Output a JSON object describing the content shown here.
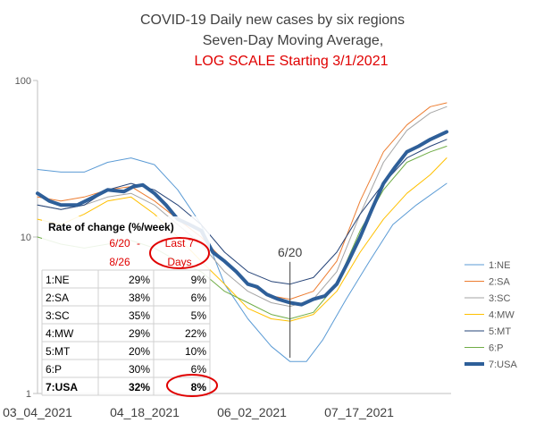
{
  "chart_data": {
    "type": "line",
    "title_lines": [
      {
        "text": "COVID-19 Daily new cases by six regions",
        "color": "#404040"
      },
      {
        "text": "Seven-Day Moving Average,",
        "color": "#404040"
      },
      {
        "text": "LOG SCALE Starting 3/1/2021",
        "color": "#e00000"
      }
    ],
    "y_scale": "log",
    "ylim": [
      1,
      100
    ],
    "yticks": [
      "100",
      "10",
      "1"
    ],
    "xticks": [
      "03_04_2021",
      "04_18_2021",
      "06_02_2021",
      "07_17_2021"
    ],
    "x_dates": [
      "2021-03-04",
      "2021-04-18",
      "2021-06-02",
      "2021-07-17"
    ],
    "xlim": [
      "2021-03-04",
      "2021-08-26"
    ],
    "grid": false,
    "legend_position": "right",
    "series": [
      {
        "name": "1:NE",
        "color": "#5b9bd5",
        "width": 1,
        "points": [
          [
            "2021-03-04",
            27
          ],
          [
            "2021-03-14",
            26
          ],
          [
            "2021-03-24",
            26
          ],
          [
            "2021-04-03",
            30
          ],
          [
            "2021-04-13",
            32
          ],
          [
            "2021-04-23",
            29
          ],
          [
            "2021-05-03",
            20
          ],
          [
            "2021-05-13",
            12
          ],
          [
            "2021-05-23",
            5
          ],
          [
            "2021-06-02",
            3
          ],
          [
            "2021-06-12",
            2
          ],
          [
            "2021-06-20",
            1.6
          ],
          [
            "2021-06-27",
            1.6
          ],
          [
            "2021-07-04",
            2.2
          ],
          [
            "2021-07-14",
            4
          ],
          [
            "2021-07-24",
            7
          ],
          [
            "2021-08-03",
            12
          ],
          [
            "2021-08-13",
            16
          ],
          [
            "2021-08-26",
            22
          ]
        ]
      },
      {
        "name": "2:SA",
        "color": "#ed7d31",
        "width": 1,
        "points": [
          [
            "2021-03-04",
            18
          ],
          [
            "2021-03-14",
            17
          ],
          [
            "2021-03-24",
            18
          ],
          [
            "2021-04-03",
            20
          ],
          [
            "2021-04-13",
            21
          ],
          [
            "2021-04-23",
            17
          ],
          [
            "2021-05-03",
            13
          ],
          [
            "2021-05-13",
            10
          ],
          [
            "2021-05-23",
            7
          ],
          [
            "2021-06-02",
            5
          ],
          [
            "2021-06-12",
            4.2
          ],
          [
            "2021-06-20",
            4
          ],
          [
            "2021-06-30",
            4.5
          ],
          [
            "2021-07-10",
            7
          ],
          [
            "2021-07-20",
            17
          ],
          [
            "2021-07-30",
            35
          ],
          [
            "2021-08-09",
            52
          ],
          [
            "2021-08-19",
            68
          ],
          [
            "2021-08-26",
            72
          ]
        ]
      },
      {
        "name": "3:SC",
        "color": "#a5a5a5",
        "width": 1,
        "points": [
          [
            "2021-03-04",
            16
          ],
          [
            "2021-03-14",
            15
          ],
          [
            "2021-03-24",
            16
          ],
          [
            "2021-04-03",
            18
          ],
          [
            "2021-04-13",
            19
          ],
          [
            "2021-04-23",
            16
          ],
          [
            "2021-05-03",
            12
          ],
          [
            "2021-05-13",
            9
          ],
          [
            "2021-05-23",
            6
          ],
          [
            "2021-06-02",
            4.5
          ],
          [
            "2021-06-12",
            3.8
          ],
          [
            "2021-06-20",
            3.6
          ],
          [
            "2021-06-30",
            4
          ],
          [
            "2021-07-10",
            6
          ],
          [
            "2021-07-20",
            14
          ],
          [
            "2021-07-30",
            30
          ],
          [
            "2021-08-09",
            48
          ],
          [
            "2021-08-19",
            62
          ],
          [
            "2021-08-26",
            68
          ]
        ]
      },
      {
        "name": "4:MW",
        "color": "#ffc000",
        "width": 1,
        "points": [
          [
            "2021-03-04",
            13
          ],
          [
            "2021-03-14",
            12
          ],
          [
            "2021-03-24",
            14
          ],
          [
            "2021-04-03",
            17
          ],
          [
            "2021-04-13",
            18
          ],
          [
            "2021-04-23",
            14
          ],
          [
            "2021-05-03",
            10
          ],
          [
            "2021-05-13",
            7
          ],
          [
            "2021-05-23",
            5
          ],
          [
            "2021-06-02",
            3.5
          ],
          [
            "2021-06-12",
            3
          ],
          [
            "2021-06-20",
            2.9
          ],
          [
            "2021-06-30",
            3.2
          ],
          [
            "2021-07-10",
            4.5
          ],
          [
            "2021-07-20",
            8
          ],
          [
            "2021-07-30",
            13
          ],
          [
            "2021-08-09",
            19
          ],
          [
            "2021-08-19",
            25
          ],
          [
            "2021-08-26",
            32
          ]
        ]
      },
      {
        "name": "5:MT",
        "color": "#264478",
        "width": 1,
        "points": [
          [
            "2021-03-04",
            16
          ],
          [
            "2021-03-14",
            15
          ],
          [
            "2021-03-24",
            16
          ],
          [
            "2021-04-03",
            20
          ],
          [
            "2021-04-13",
            22
          ],
          [
            "2021-04-23",
            20
          ],
          [
            "2021-05-03",
            16
          ],
          [
            "2021-05-13",
            12
          ],
          [
            "2021-05-23",
            8
          ],
          [
            "2021-06-02",
            6
          ],
          [
            "2021-06-12",
            5.2
          ],
          [
            "2021-06-20",
            5
          ],
          [
            "2021-06-30",
            5.5
          ],
          [
            "2021-07-10",
            8
          ],
          [
            "2021-07-20",
            14
          ],
          [
            "2021-07-30",
            22
          ],
          [
            "2021-08-09",
            32
          ],
          [
            "2021-08-19",
            38
          ],
          [
            "2021-08-26",
            42
          ]
        ]
      },
      {
        "name": "6:P",
        "color": "#70ad47",
        "width": 1,
        "points": [
          [
            "2021-03-04",
            10
          ],
          [
            "2021-03-14",
            9
          ],
          [
            "2021-03-24",
            8.5
          ],
          [
            "2021-04-03",
            9
          ],
          [
            "2021-04-13",
            9.5
          ],
          [
            "2021-04-23",
            8.5
          ],
          [
            "2021-05-03",
            7
          ],
          [
            "2021-05-13",
            6
          ],
          [
            "2021-05-23",
            4.5
          ],
          [
            "2021-06-02",
            3.8
          ],
          [
            "2021-06-12",
            3.2
          ],
          [
            "2021-06-20",
            3
          ],
          [
            "2021-06-30",
            3.3
          ],
          [
            "2021-07-10",
            5
          ],
          [
            "2021-07-20",
            11
          ],
          [
            "2021-07-30",
            20
          ],
          [
            "2021-08-09",
            30
          ],
          [
            "2021-08-19",
            35
          ],
          [
            "2021-08-26",
            38
          ]
        ]
      },
      {
        "name": "7:USA",
        "color": "#2e5f99",
        "width": 4,
        "points": [
          [
            "2021-03-04",
            19
          ],
          [
            "2021-03-09",
            17
          ],
          [
            "2021-03-14",
            16
          ],
          [
            "2021-03-21",
            16
          ],
          [
            "2021-03-28",
            18
          ],
          [
            "2021-04-03",
            20
          ],
          [
            "2021-04-10",
            19.5
          ],
          [
            "2021-04-14",
            21
          ],
          [
            "2021-04-18",
            21.5
          ],
          [
            "2021-04-23",
            19
          ],
          [
            "2021-04-28",
            16
          ],
          [
            "2021-05-03",
            13
          ],
          [
            "2021-05-08",
            12
          ],
          [
            "2021-05-13",
            11
          ],
          [
            "2021-05-18",
            8
          ],
          [
            "2021-05-23",
            7
          ],
          [
            "2021-05-28",
            6
          ],
          [
            "2021-06-02",
            5
          ],
          [
            "2021-06-06",
            4.8
          ],
          [
            "2021-06-10",
            4.3
          ],
          [
            "2021-06-15",
            4
          ],
          [
            "2021-06-20",
            3.8
          ],
          [
            "2021-06-25",
            3.7
          ],
          [
            "2021-06-30",
            4
          ],
          [
            "2021-07-05",
            4.2
          ],
          [
            "2021-07-10",
            5
          ],
          [
            "2021-07-15",
            7
          ],
          [
            "2021-07-20",
            10
          ],
          [
            "2021-07-25",
            15
          ],
          [
            "2021-07-30",
            22
          ],
          [
            "2021-08-04",
            28
          ],
          [
            "2021-08-09",
            35
          ],
          [
            "2021-08-14",
            38
          ],
          [
            "2021-08-19",
            42
          ],
          [
            "2021-08-26",
            47
          ]
        ]
      }
    ],
    "annotation": {
      "text": "6/20",
      "date": "2021-06-20",
      "value": 7.5,
      "color": "#404040"
    }
  },
  "rate_table": {
    "title": "Rate of change (%/week)",
    "col1_header_top": "6/20",
    "col1_header_sep": "-",
    "col1_header_bottom": "8/26",
    "col2_header_top": "Last 7",
    "col2_header_bottom": "Days",
    "rows": [
      {
        "region": "1:NE",
        "since": "29%",
        "last7": "9%"
      },
      {
        "region": "2:SA",
        "since": "38%",
        "last7": "6%"
      },
      {
        "region": "3:SC",
        "since": "35%",
        "last7": "5%"
      },
      {
        "region": "4:MW",
        "since": "29%",
        "last7": "22%"
      },
      {
        "region": "5:MT",
        "since": "20%",
        "last7": "10%"
      },
      {
        "region": "6:P",
        "since": "30%",
        "last7": "6%"
      },
      {
        "region": "7:USA",
        "since": "32%",
        "last7": "8%"
      }
    ],
    "highlight_color": "#e00000"
  }
}
